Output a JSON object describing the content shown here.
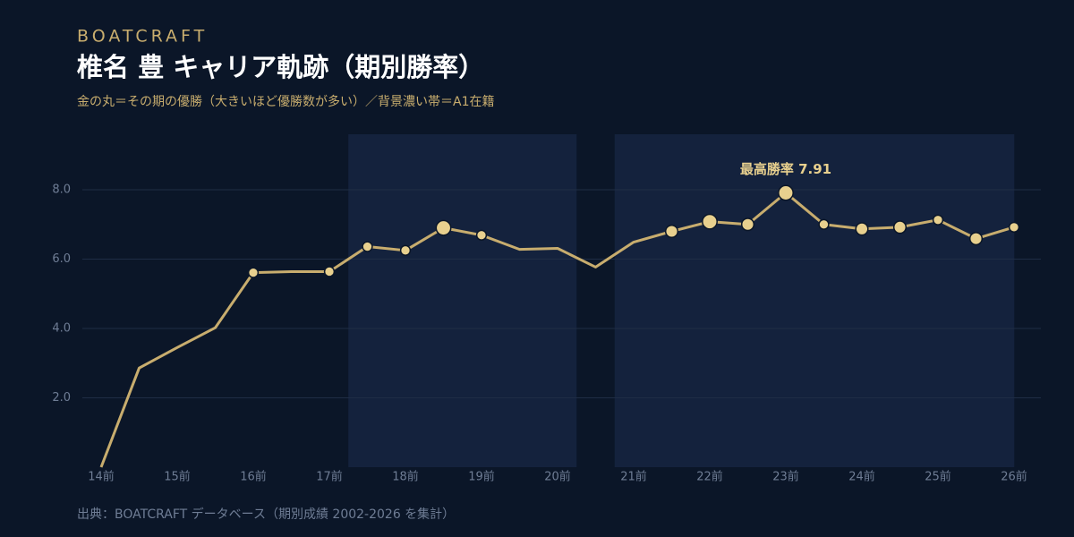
{
  "chart_data": {
    "type": "line",
    "brand": "BOATCRAFT",
    "title": "椎名 豊 キャリア軌跡（期別勝率）",
    "subtitle": "金の丸＝その期の優勝（大きいほど優勝数が多い）／背景濃い帯＝A1在籍",
    "source": "出典：BOATCRAFT データベース（期別成績 2002-2026 を集計）",
    "annotation": "最高勝率 7.91",
    "categories": [
      "14前",
      null,
      "15前",
      null,
      "16前",
      null,
      "17前",
      null,
      "18前",
      null,
      "19前",
      null,
      "20前",
      null,
      "21前",
      null,
      "22前",
      null,
      "23前",
      null,
      "24前",
      null,
      "25前",
      null,
      "26前"
    ],
    "series": [
      {
        "name": "勝率",
        "color": "#c8ad6e",
        "values": [
          0.0,
          2.86,
          3.45,
          4.02,
          5.61,
          5.64,
          5.64,
          6.36,
          6.25,
          6.9,
          6.69,
          6.28,
          6.31,
          5.77,
          6.49,
          6.8,
          7.08,
          7.0,
          7.91,
          7.0,
          6.87,
          6.92,
          7.13,
          6.59,
          6.92
        ],
        "wins": [
          null,
          null,
          null,
          null,
          1,
          null,
          1,
          1,
          1,
          3,
          1,
          null,
          null,
          null,
          null,
          2,
          3,
          2,
          3,
          1,
          2,
          2,
          1,
          2,
          1
        ],
        "marker_color": "#e8d08e"
      }
    ],
    "a1_bands": [
      [
        7,
        12
      ],
      [
        14,
        24
      ]
    ],
    "band_color": "#14223d",
    "ylim": [
      0,
      9.6
    ],
    "yticks": [
      {
        "value": 2,
        "label": "2.0"
      },
      {
        "value": 4,
        "label": "4.0"
      },
      {
        "value": 6,
        "label": "6.0"
      },
      {
        "value": 8,
        "label": "8.0"
      }
    ],
    "grid": true
  }
}
